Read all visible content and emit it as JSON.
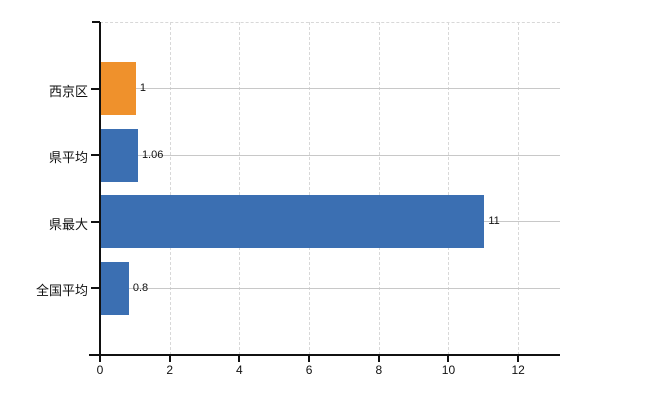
{
  "chart_data": {
    "type": "bar",
    "orientation": "horizontal",
    "title": "",
    "xlabel": "",
    "ylabel": "",
    "categories": [
      "西京区",
      "県平均",
      "県最大",
      "全国平均"
    ],
    "values": [
      1,
      1.06,
      11,
      0.8
    ],
    "value_labels": [
      "1",
      "1.06",
      "11",
      "0.8"
    ],
    "series": [
      {
        "name": "value",
        "values": [
          1,
          1.06,
          11,
          0.8
        ],
        "colors": [
          "#EF912C",
          "#3B6FB2",
          "#3B6FB2",
          "#3B6FB2"
        ]
      }
    ],
    "x_ticks": [
      {
        "value": 0,
        "label": "0"
      },
      {
        "value": 2,
        "label": "2"
      },
      {
        "value": 4,
        "label": "4"
      },
      {
        "value": 6,
        "label": "6"
      },
      {
        "value": 8,
        "label": "8"
      },
      {
        "value": 10,
        "label": "10"
      },
      {
        "value": 12,
        "label": "12"
      }
    ],
    "xlim": [
      0,
      13.2
    ],
    "legend": "none",
    "grid": {
      "vertical": "dashed",
      "horizontal": "solid",
      "top_border": "dashed"
    },
    "colors": {
      "background": "#ffffff",
      "axis": "#111111",
      "grid_vertical": "#d8d8d8",
      "grid_horizontal": "#c8c8c8",
      "text": "#111111",
      "bar_highlight": "#EF912C",
      "bar_default": "#3B6FB2"
    }
  }
}
